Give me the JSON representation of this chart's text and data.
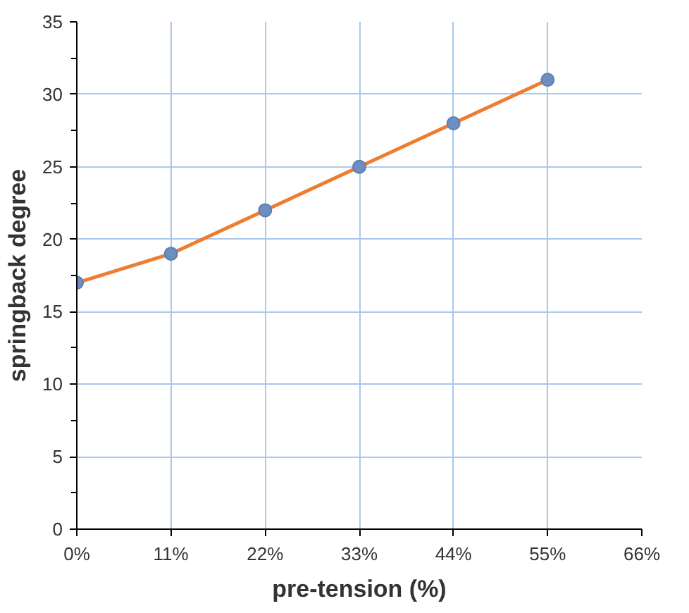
{
  "chart_data": {
    "type": "line",
    "xlabel": "pre-tension (%)",
    "ylabel": "springback degree",
    "x": [
      0,
      11,
      22,
      33,
      44,
      55
    ],
    "series": [
      {
        "color": "#ed7d31",
        "values": [
          17,
          19,
          22,
          25,
          28,
          31
        ]
      }
    ],
    "xlim": [
      0,
      66
    ],
    "xticks": [
      {
        "value": 0,
        "label": "0%"
      },
      {
        "value": 11,
        "label": "11%"
      },
      {
        "value": 22,
        "label": "22%"
      },
      {
        "value": 33,
        "label": "33%"
      },
      {
        "value": 44,
        "label": "44%"
      },
      {
        "value": 55,
        "label": "55%"
      },
      {
        "value": 66,
        "label": "66%"
      }
    ],
    "ylim": [
      0,
      35
    ],
    "yticks": [
      0,
      5,
      10,
      15,
      20,
      25,
      30,
      35
    ],
    "grid": true,
    "marker": "circle",
    "line_style": "solid"
  }
}
